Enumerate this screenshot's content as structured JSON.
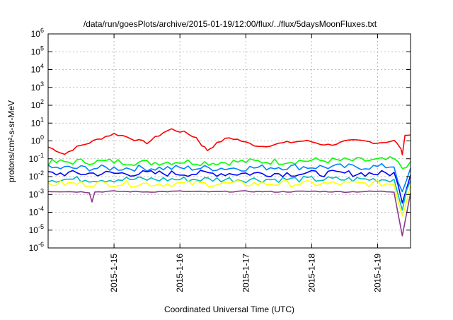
{
  "chart_data": {
    "type": "line",
    "title": "/data/run/goesPlots/archive/2015-01-19/12:00/flux/../flux/5daysMoonFluxes.txt",
    "xlabel": "Coordinated Universal Time (UTC)",
    "ylabel": "protons/cm²-s-sr-MeV",
    "y_scale": "log",
    "ylim": [
      1e-06,
      1000000.0
    ],
    "y_ticks": [
      {
        "value": 1e-06,
        "base": "10",
        "exp": "-6"
      },
      {
        "value": 1e-05,
        "base": "10",
        "exp": "-5"
      },
      {
        "value": 0.0001,
        "base": "10",
        "exp": "-4"
      },
      {
        "value": 0.001,
        "base": "10",
        "exp": "-3"
      },
      {
        "value": 0.01,
        "base": "10",
        "exp": "-2"
      },
      {
        "value": 0.1,
        "base": "10",
        "exp": "-1"
      },
      {
        "value": 1,
        "base": "10",
        "exp": "0"
      },
      {
        "value": 10.0,
        "base": "10",
        "exp": "1"
      },
      {
        "value": 100.0,
        "base": "10",
        "exp": "2"
      },
      {
        "value": 1000.0,
        "base": "10",
        "exp": "3"
      },
      {
        "value": 10000.0,
        "base": "10",
        "exp": "4"
      },
      {
        "value": 100000.0,
        "base": "10",
        "exp": "5"
      },
      {
        "value": 1000000.0,
        "base": "10",
        "exp": "6"
      }
    ],
    "xlim": [
      "2015-01-14T00:00",
      "2015-01-19T12:00"
    ],
    "x_ticks": [
      {
        "value": "2015-01-15T00:00",
        "label": "2015-1-15"
      },
      {
        "value": "2015-01-16T00:00",
        "label": "2015-1-16"
      },
      {
        "value": "2015-01-17T00:00",
        "label": "2015-1-17"
      },
      {
        "value": "2015-01-18T00:00",
        "label": "2015-1-18"
      },
      {
        "value": "2015-01-19T00:00",
        "label": "2015-1-19"
      }
    ],
    "grid": true,
    "series": [
      {
        "color": "#ff0000",
        "points": [
          [
            "2015-01-14T00:00",
            0.45
          ],
          [
            "2015-01-14T03:00",
            0.3
          ],
          [
            "2015-01-14T06:00",
            0.18
          ],
          [
            "2015-01-14T09:00",
            0.35
          ],
          [
            "2015-01-14T12:00",
            0.55
          ],
          [
            "2015-01-14T15:00",
            0.8
          ],
          [
            "2015-01-14T18:00",
            1.2
          ],
          [
            "2015-01-14T21:00",
            1.8
          ],
          [
            "2015-01-15T00:00",
            2.5
          ],
          [
            "2015-01-15T03:00",
            2.0
          ],
          [
            "2015-01-15T06:00",
            1.5
          ],
          [
            "2015-01-15T09:00",
            1.0
          ],
          [
            "2015-01-15T12:00",
            0.8
          ],
          [
            "2015-01-15T15:00",
            1.5
          ],
          [
            "2015-01-15T18:00",
            3.0
          ],
          [
            "2015-01-15T21:00",
            4.5
          ],
          [
            "2015-01-16T00:00",
            3.5
          ],
          [
            "2015-01-16T03:00",
            2.5
          ],
          [
            "2015-01-16T06:00",
            1.5
          ],
          [
            "2015-01-16T08:00",
            0.6
          ],
          [
            "2015-01-16T10:00",
            0.3
          ],
          [
            "2015-01-16T12:00",
            0.5
          ],
          [
            "2015-01-16T15:00",
            1.0
          ],
          [
            "2015-01-16T18:00",
            1.5
          ],
          [
            "2015-01-16T21:00",
            1.2
          ],
          [
            "2015-01-17T00:00",
            0.8
          ],
          [
            "2015-01-17T03:00",
            0.6
          ],
          [
            "2015-01-17T06:00",
            0.5
          ],
          [
            "2015-01-17T09:00",
            0.6
          ],
          [
            "2015-01-17T12:00",
            0.7
          ],
          [
            "2015-01-17T15:00",
            0.8
          ],
          [
            "2015-01-17T18:00",
            0.9
          ],
          [
            "2015-01-17T21:00",
            1.0
          ],
          [
            "2015-01-18T00:00",
            0.9
          ],
          [
            "2015-01-18T03:00",
            0.7
          ],
          [
            "2015-01-18T06:00",
            0.6
          ],
          [
            "2015-01-18T09:00",
            0.7
          ],
          [
            "2015-01-18T12:00",
            0.9
          ],
          [
            "2015-01-18T15:00",
            1.0
          ],
          [
            "2015-01-18T18:00",
            1.0
          ],
          [
            "2015-01-18T21:00",
            0.9
          ],
          [
            "2015-01-19T00:00",
            0.8
          ],
          [
            "2015-01-19T03:00",
            0.9
          ],
          [
            "2015-01-19T06:00",
            1.0
          ],
          [
            "2015-01-19T08:00",
            0.5
          ],
          [
            "2015-01-19T09:00",
            0.2
          ],
          [
            "2015-01-19T10:00",
            2.0
          ],
          [
            "2015-01-19T12:00",
            2.2
          ]
        ]
      },
      {
        "color": "#00ff00",
        "points": [
          [
            "2015-01-14T00:00",
            0.06
          ],
          [
            "2015-01-14T12:00",
            0.07
          ],
          [
            "2015-01-15T00:00",
            0.07
          ],
          [
            "2015-01-15T12:00",
            0.06
          ],
          [
            "2015-01-16T00:00",
            0.07
          ],
          [
            "2015-01-16T12:00",
            0.06
          ],
          [
            "2015-01-17T00:00",
            0.07
          ],
          [
            "2015-01-17T12:00",
            0.07
          ],
          [
            "2015-01-18T00:00",
            0.08
          ],
          [
            "2015-01-18T12:00",
            0.08
          ],
          [
            "2015-01-19T00:00",
            0.08
          ],
          [
            "2015-01-19T06:00",
            0.09
          ],
          [
            "2015-01-19T09:00",
            0.03
          ],
          [
            "2015-01-19T12:00",
            0.07
          ]
        ]
      },
      {
        "color": "#0080ff",
        "points": [
          [
            "2015-01-14T00:00",
            0.03
          ],
          [
            "2015-01-14T12:00",
            0.03
          ],
          [
            "2015-01-15T00:00",
            0.03
          ],
          [
            "2015-01-15T12:00",
            0.03
          ],
          [
            "2015-01-16T00:00",
            0.03
          ],
          [
            "2015-01-16T12:00",
            0.03
          ],
          [
            "2015-01-17T00:00",
            0.03
          ],
          [
            "2015-01-17T12:00",
            0.035
          ],
          [
            "2015-01-18T00:00",
            0.035
          ],
          [
            "2015-01-18T12:00",
            0.035
          ],
          [
            "2015-01-19T00:00",
            0.035
          ],
          [
            "2015-01-19T06:00",
            0.04
          ],
          [
            "2015-01-19T09:00",
            0.001
          ],
          [
            "2015-01-19T12:00",
            0.03
          ]
        ]
      },
      {
        "color": "#0000ff",
        "points": [
          [
            "2015-01-14T00:00",
            0.015
          ],
          [
            "2015-01-14T12:00",
            0.015
          ],
          [
            "2015-01-15T00:00",
            0.015
          ],
          [
            "2015-01-15T12:00",
            0.015
          ],
          [
            "2015-01-16T00:00",
            0.015
          ],
          [
            "2015-01-16T12:00",
            0.015
          ],
          [
            "2015-01-17T00:00",
            0.015
          ],
          [
            "2015-01-17T12:00",
            0.015
          ],
          [
            "2015-01-18T00:00",
            0.015
          ],
          [
            "2015-01-18T12:00",
            0.015
          ],
          [
            "2015-01-19T00:00",
            0.015
          ],
          [
            "2015-01-19T06:00",
            0.015
          ],
          [
            "2015-01-19T09:00",
            0.0005
          ],
          [
            "2015-01-19T12:00",
            0.012
          ]
        ]
      },
      {
        "color": "#00bbbb",
        "points": [
          [
            "2015-01-14T00:00",
            0.007
          ],
          [
            "2015-01-14T12:00",
            0.007
          ],
          [
            "2015-01-15T00:00",
            0.007
          ],
          [
            "2015-01-15T12:00",
            0.007
          ],
          [
            "2015-01-16T00:00",
            0.007
          ],
          [
            "2015-01-16T12:00",
            0.007
          ],
          [
            "2015-01-17T00:00",
            0.007
          ],
          [
            "2015-01-17T12:00",
            0.007
          ],
          [
            "2015-01-18T00:00",
            0.007
          ],
          [
            "2015-01-18T12:00",
            0.007
          ],
          [
            "2015-01-19T00:00",
            0.007
          ],
          [
            "2015-01-19T06:00",
            0.007
          ],
          [
            "2015-01-19T09:00",
            0.0002
          ],
          [
            "2015-01-19T12:00",
            0.006
          ]
        ]
      },
      {
        "color": "#ffff00",
        "points": [
          [
            "2015-01-14T00:00",
            0.004
          ],
          [
            "2015-01-14T12:00",
            0.004
          ],
          [
            "2015-01-15T00:00",
            0.004
          ],
          [
            "2015-01-15T12:00",
            0.004
          ],
          [
            "2015-01-16T00:00",
            0.004
          ],
          [
            "2015-01-16T12:00",
            0.004
          ],
          [
            "2015-01-17T00:00",
            0.004
          ],
          [
            "2015-01-17T12:00",
            0.004
          ],
          [
            "2015-01-18T00:00",
            0.004
          ],
          [
            "2015-01-18T12:00",
            0.004
          ],
          [
            "2015-01-19T00:00",
            0.004
          ],
          [
            "2015-01-19T06:00",
            0.004
          ],
          [
            "2015-01-19T09:00",
            7e-05
          ],
          [
            "2015-01-19T12:00",
            0.003
          ]
        ]
      },
      {
        "color": "#8b3a8b",
        "points": [
          [
            "2015-01-14T00:00",
            0.0015
          ],
          [
            "2015-01-14T12:00",
            0.0014
          ],
          [
            "2015-01-14T15:00",
            0.0013
          ],
          [
            "2015-01-14T16:00",
            0.0004
          ],
          [
            "2015-01-14T17:00",
            0.0014
          ],
          [
            "2015-01-15T00:00",
            0.0015
          ],
          [
            "2015-01-15T12:00",
            0.0014
          ],
          [
            "2015-01-16T00:00",
            0.0015
          ],
          [
            "2015-01-16T12:00",
            0.0014
          ],
          [
            "2015-01-17T00:00",
            0.0015
          ],
          [
            "2015-01-17T12:00",
            0.0014
          ],
          [
            "2015-01-18T00:00",
            0.0015
          ],
          [
            "2015-01-18T12:00",
            0.0014
          ],
          [
            "2015-01-19T00:00",
            0.0015
          ],
          [
            "2015-01-19T06:00",
            0.0014
          ],
          [
            "2015-01-19T09:00",
            5e-06
          ],
          [
            "2015-01-19T12:00",
            0.0012
          ]
        ]
      }
    ]
  }
}
